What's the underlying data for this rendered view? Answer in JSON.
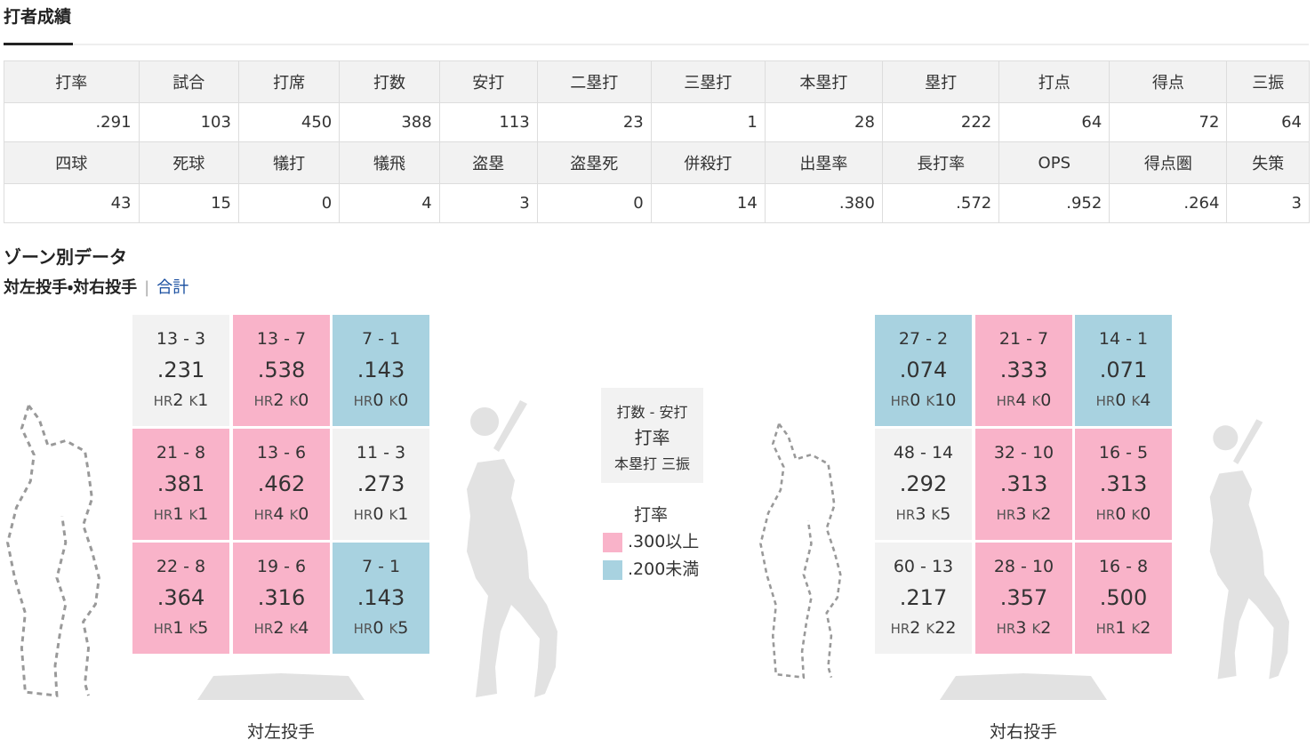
{
  "header": {
    "title": "打者成績"
  },
  "table": {
    "rows": [
      [
        "打率",
        "試合",
        "打席",
        "打数",
        "安打",
        "二塁打",
        "三塁打",
        "本塁打",
        "塁打",
        "打点",
        "得点",
        "三振"
      ],
      [
        ".291",
        "103",
        "450",
        "388",
        "113",
        "23",
        "1",
        "28",
        "222",
        "64",
        "72",
        "64"
      ],
      [
        "四球",
        "死球",
        "犠打",
        "犠飛",
        "盗塁",
        "盗塁死",
        "併殺打",
        "出塁率",
        "長打率",
        "OPS",
        "得点圏",
        "失策"
      ],
      [
        "43",
        "15",
        "0",
        "4",
        "3",
        "0",
        "14",
        ".380",
        ".572",
        ".952",
        ".264",
        "3"
      ]
    ]
  },
  "zone": {
    "title": "ゾーン別データ",
    "tab_active": "対左投手・対右投手",
    "tab_link": "合計",
    "hr_label": "HR",
    "k_label": "K",
    "grids": [
      {
        "caption": "対左投手",
        "cells": [
          [
            {
              "ab_h": "13 - 3",
              "avg": ".231",
              "hr": "2",
              "k": "1",
              "color": "#f2f2f2"
            },
            {
              "ab_h": "13 - 7",
              "avg": ".538",
              "hr": "2",
              "k": "0",
              "color": "#f9b3c9"
            },
            {
              "ab_h": "7 - 1",
              "avg": ".143",
              "hr": "0",
              "k": "0",
              "color": "#a8d2e0"
            }
          ],
          [
            {
              "ab_h": "21 - 8",
              "avg": ".381",
              "hr": "1",
              "k": "1",
              "color": "#f9b3c9"
            },
            {
              "ab_h": "13 - 6",
              "avg": ".462",
              "hr": "4",
              "k": "0",
              "color": "#f9b3c9"
            },
            {
              "ab_h": "11 - 3",
              "avg": ".273",
              "hr": "0",
              "k": "1",
              "color": "#f2f2f2"
            }
          ],
          [
            {
              "ab_h": "22 - 8",
              "avg": ".364",
              "hr": "1",
              "k": "5",
              "color": "#f9b3c9"
            },
            {
              "ab_h": "19 - 6",
              "avg": ".316",
              "hr": "2",
              "k": "4",
              "color": "#f9b3c9"
            },
            {
              "ab_h": "7 - 1",
              "avg": ".143",
              "hr": "0",
              "k": "5",
              "color": "#a8d2e0"
            }
          ]
        ]
      },
      {
        "caption": "対右投手",
        "cells": [
          [
            {
              "ab_h": "27 - 2",
              "avg": ".074",
              "hr": "0",
              "k": "10",
              "color": "#a8d2e0"
            },
            {
              "ab_h": "21 - 7",
              "avg": ".333",
              "hr": "4",
              "k": "0",
              "color": "#f9b3c9"
            },
            {
              "ab_h": "14 - 1",
              "avg": ".071",
              "hr": "0",
              "k": "4",
              "color": "#a8d2e0"
            }
          ],
          [
            {
              "ab_h": "48 - 14",
              "avg": ".292",
              "hr": "3",
              "k": "5",
              "color": "#f2f2f2"
            },
            {
              "ab_h": "32 - 10",
              "avg": ".313",
              "hr": "3",
              "k": "2",
              "color": "#f9b3c9"
            },
            {
              "ab_h": "16 - 5",
              "avg": ".313",
              "hr": "0",
              "k": "0",
              "color": "#f9b3c9"
            }
          ],
          [
            {
              "ab_h": "60 - 13",
              "avg": ".217",
              "hr": "2",
              "k": "22",
              "color": "#f2f2f2"
            },
            {
              "ab_h": "28 - 10",
              "avg": ".357",
              "hr": "3",
              "k": "2",
              "color": "#f9b3c9"
            },
            {
              "ab_h": "16 - 8",
              "avg": ".500",
              "hr": "1",
              "k": "2",
              "color": "#f9b3c9"
            }
          ]
        ]
      }
    ],
    "legend": {
      "box": [
        "打数 - 安打",
        "打率",
        "本塁打 三振"
      ],
      "title": "打率",
      "items": [
        {
          "label": ".300以上",
          "color": "#f9b3c9"
        },
        {
          "label": ".200未満",
          "color": "#a8d2e0"
        }
      ]
    }
  }
}
